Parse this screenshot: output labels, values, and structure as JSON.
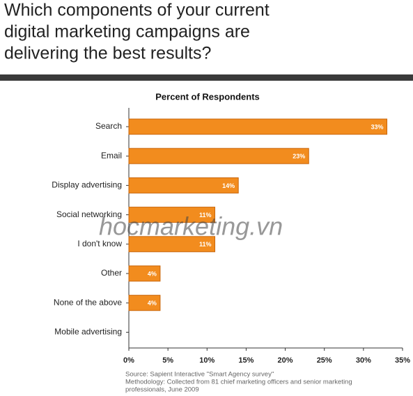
{
  "chart_data": {
    "type": "bar",
    "orientation": "horizontal",
    "title": [
      "Which components of your current",
      "digital marketing campaigns are",
      "delivering the best results?"
    ],
    "subtitle": "Percent of Respondents",
    "categories": [
      "Search",
      "Email",
      "Display advertising",
      "Social networking",
      "I don't know",
      "Other",
      "None of the above",
      "Mobile advertising"
    ],
    "values": [
      33,
      23,
      14,
      11,
      11,
      4,
      4,
      0
    ],
    "value_labels": [
      "33%",
      "23%",
      "14%",
      "11%",
      "11%",
      "4%",
      "4%",
      null
    ],
    "color": "#f28c1e",
    "xlim": [
      0,
      35
    ],
    "xticks": [
      {
        "value": 0,
        "label": "0%"
      },
      {
        "value": 5,
        "label": "5%"
      },
      {
        "value": 10,
        "label": "10%"
      },
      {
        "value": 15,
        "label": "15%"
      },
      {
        "value": 20,
        "label": "20%"
      },
      {
        "value": 25,
        "label": "25%"
      },
      {
        "value": 30,
        "label": "30%"
      },
      {
        "value": 35,
        "label": "35%"
      }
    ],
    "watermark": "hocmarketing.vn",
    "notes": [
      "Source: Sapient Interactive \"Smart Agency survey\"",
      "Methodology:  Collected from 81 chief marketing officers and senior marketing",
      "professionals, June 2009"
    ]
  }
}
